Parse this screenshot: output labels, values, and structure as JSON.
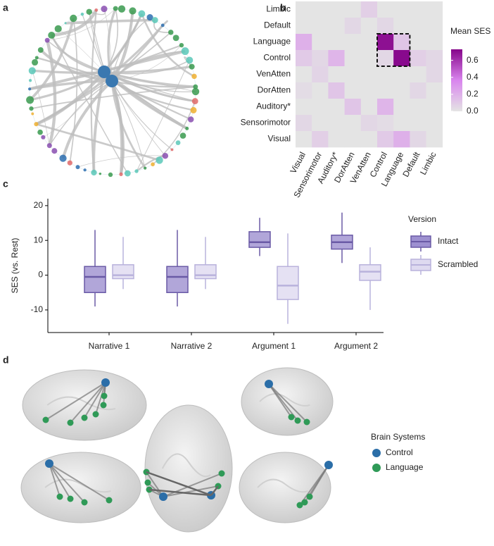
{
  "panels": [
    "a",
    "b",
    "c",
    "d"
  ],
  "chart_data": [
    {
      "type": "heatmap",
      "rows": [
        "Limbic",
        "Default",
        "Language",
        "Control",
        "VenAtten",
        "DorAtten",
        "Auditory*",
        "Sensorimotor",
        "Visual"
      ],
      "columns": [
        "Visual",
        "Sensorimotor",
        "Auditory*",
        "DorAtten",
        "VenAtten",
        "Control",
        "Language",
        "Default",
        "Limbic"
      ],
      "values": [
        [
          0,
          0,
          0,
          0,
          0.08,
          0,
          0,
          0,
          0
        ],
        [
          0,
          0,
          0,
          0.05,
          0,
          0.05,
          0,
          0,
          0
        ],
        [
          0.2,
          0,
          0,
          0,
          0,
          0.7,
          0.12,
          0,
          0
        ],
        [
          0.1,
          0.05,
          0.18,
          0,
          0,
          0.05,
          0.72,
          0.08,
          0.05
        ],
        [
          0,
          0.06,
          0,
          0,
          0,
          0,
          0,
          0,
          0.05
        ],
        [
          0.03,
          0,
          0.12,
          0,
          0,
          0,
          0,
          0.05,
          0
        ],
        [
          0,
          0,
          0,
          0.12,
          0,
          0.18,
          0,
          0,
          0
        ],
        [
          0.05,
          0,
          0,
          0,
          0.05,
          0.03,
          0,
          0,
          0
        ],
        [
          0,
          0.08,
          0,
          0,
          0,
          0.1,
          0.2,
          0.05,
          0
        ]
      ],
      "colorbar_title": "Mean SES",
      "clim": [
        0,
        0.73
      ],
      "cticks": [
        {
          "value": 0,
          "label": "0.0"
        },
        0.2,
        0.4,
        0.6
      ],
      "colorscale": [
        "#e4e4e4",
        "#d985ee",
        "#86068a"
      ]
    },
    {
      "type": "box",
      "categories": [
        "Narrative 1",
        "Narrative 2",
        "Argument 1",
        "Argument 2"
      ],
      "ylabel": "SES (vs. Rest)",
      "ylim": [
        -16.5,
        22
      ],
      "yticks": [
        -10,
        0,
        10,
        20
      ],
      "legend_title": "Version",
      "series": [
        {
          "name": "Intact",
          "color": "#9d90d0",
          "stroke": "#6a5aa6",
          "min": [
            -9,
            -9,
            5.5,
            3.5
          ],
          "q1": [
            -5,
            -5,
            8,
            7.5
          ],
          "median": [
            -0.5,
            -0.5,
            9.5,
            9.5
          ],
          "q3": [
            2.5,
            2.5,
            12.5,
            11.5
          ],
          "max": [
            13,
            13,
            16.5,
            18
          ]
        },
        {
          "name": "Scrambled",
          "color": "#dedaf0",
          "stroke": "#b9b2dc",
          "min": [
            -4,
            -4,
            -14,
            -10
          ],
          "q1": [
            -1,
            -1,
            -7,
            -1.5
          ],
          "median": [
            0,
            0,
            -3,
            1
          ],
          "q3": [
            3,
            3,
            2.5,
            3
          ],
          "max": [
            11,
            11,
            12,
            8
          ]
        }
      ]
    }
  ],
  "brain_legend": {
    "title": "Brain Systems",
    "items": [
      {
        "name": "Control",
        "color": "#2b6ea8"
      },
      {
        "name": "Language",
        "color": "#2f9a57"
      }
    ]
  }
}
